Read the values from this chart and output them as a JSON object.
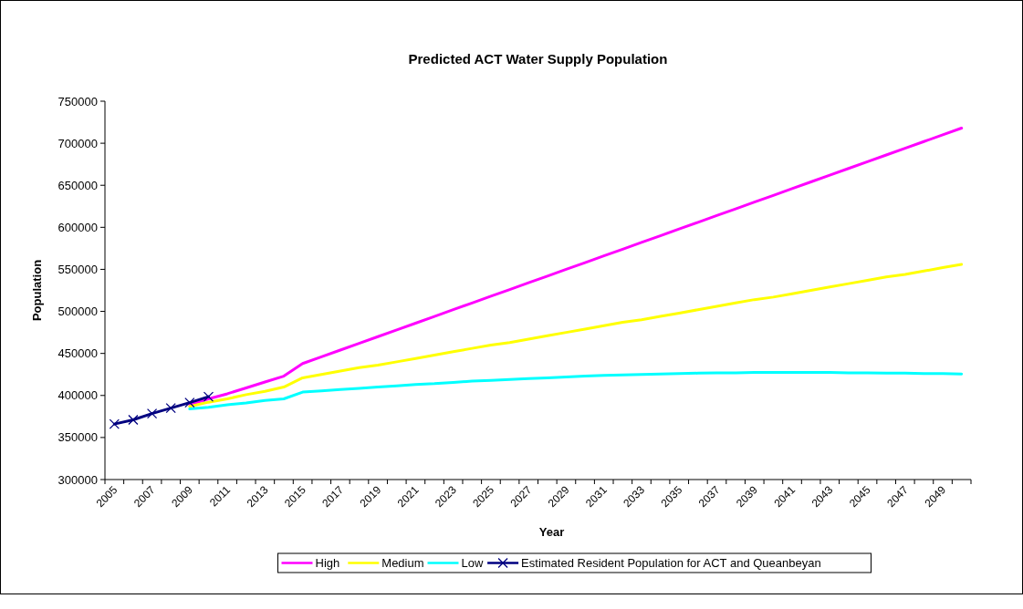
{
  "chart_data": {
    "type": "line",
    "title": "Predicted ACT Water Supply Population",
    "xlabel": "Year",
    "ylabel": "Population",
    "categories": [
      "2005",
      null,
      "2007",
      null,
      "2009",
      null,
      "2011",
      null,
      "2013",
      null,
      "2015",
      null,
      "2017",
      null,
      "2019",
      null,
      "2021",
      null,
      "2023",
      null,
      "2025",
      null,
      "2027",
      null,
      "2029",
      null,
      "2031",
      null,
      "2033",
      null,
      "2035",
      null,
      "2037",
      null,
      "2039",
      null,
      "2041",
      null,
      "2043",
      null,
      "2045",
      null,
      "2047",
      null,
      "2049",
      null
    ],
    "series": [
      {
        "name": "High",
        "color": "#ff00ff",
        "marker": "none",
        "values": [
          null,
          null,
          null,
          null,
          389000,
          396000,
          402000,
          409000,
          416000,
          423000,
          438000,
          446000,
          454000,
          462000,
          470000,
          478000,
          486000,
          494000,
          502000,
          510000,
          518000,
          526000,
          534000,
          542000,
          550000,
          558000,
          566000,
          574000,
          582000,
          590000,
          598000,
          606000,
          614000,
          622000,
          630000,
          638000,
          646000,
          654000,
          662000,
          670000,
          678000,
          686000,
          694000,
          702000,
          710000,
          718000
        ]
      },
      {
        "name": "Medium",
        "color": "#ffff00",
        "marker": "none",
        "values": [
          null,
          null,
          null,
          null,
          387000,
          392000,
          396000,
          401000,
          405000,
          410000,
          421000,
          425000,
          429000,
          433000,
          436000,
          440000,
          444000,
          448000,
          452000,
          456000,
          460000,
          463000,
          467000,
          471000,
          475000,
          479000,
          483000,
          487000,
          490000,
          494000,
          498000,
          502000,
          506000,
          510000,
          514000,
          517000,
          521000,
          525000,
          529000,
          533000,
          537000,
          541000,
          544000,
          548000,
          552000,
          556000
        ]
      },
      {
        "name": "Low",
        "color": "#00ffff",
        "marker": "none",
        "values": [
          null,
          null,
          null,
          null,
          384000,
          386000,
          389000,
          391000,
          394000,
          396000,
          404000,
          405500,
          407000,
          408500,
          410000,
          411500,
          413000,
          414000,
          415500,
          417000,
          418000,
          419000,
          420000,
          421000,
          422000,
          423000,
          424000,
          424500,
          425000,
          425500,
          426000,
          426500,
          427000,
          427000,
          427500,
          427500,
          427500,
          427500,
          427500,
          427000,
          427000,
          426500,
          426500,
          426000,
          426000,
          425500
        ]
      },
      {
        "name": "Estimated Resident Population for ACT and Queanbeyan",
        "color": "#000080",
        "marker": "cross",
        "values": [
          366000,
          371000,
          378500,
          385000,
          391500,
          398500,
          null,
          null,
          null,
          null,
          null,
          null,
          null,
          null,
          null,
          null,
          null,
          null,
          null,
          null,
          null,
          null,
          null,
          null,
          null,
          null,
          null,
          null,
          null,
          null,
          null,
          null,
          null,
          null,
          null,
          null,
          null,
          null,
          null,
          null,
          null,
          null,
          null,
          null,
          null,
          null
        ]
      }
    ],
    "ylim": [
      300000,
      750000
    ],
    "yticks": [
      300000,
      350000,
      400000,
      450000,
      500000,
      550000,
      600000,
      650000,
      700000,
      750000
    ],
    "grid": false,
    "legend": "bottom"
  }
}
